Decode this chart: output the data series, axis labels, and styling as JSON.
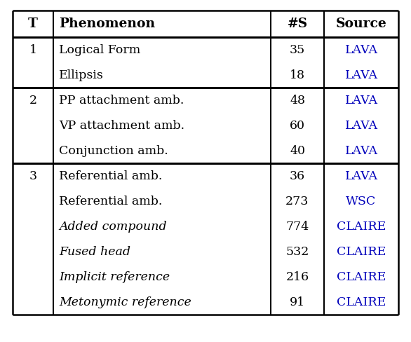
{
  "headers": [
    "T",
    "Phenomenon",
    "#S",
    "Source"
  ],
  "rows": [
    {
      "t": "1",
      "phenomenon": "Logical Form",
      "ns": "35",
      "source": "LAVA",
      "italic": false
    },
    {
      "t": "",
      "phenomenon": "Ellipsis",
      "ns": "18",
      "source": "LAVA",
      "italic": false
    },
    {
      "t": "2",
      "phenomenon": "PP attachment amb.",
      "ns": "48",
      "source": "LAVA",
      "italic": false
    },
    {
      "t": "",
      "phenomenon": "VP attachment amb.",
      "ns": "60",
      "source": "LAVA",
      "italic": false
    },
    {
      "t": "",
      "phenomenon": "Conjunction amb.",
      "ns": "40",
      "source": "LAVA",
      "italic": false
    },
    {
      "t": "3",
      "phenomenon": "Referential amb.",
      "ns": "36",
      "source": "LAVA",
      "italic": false
    },
    {
      "t": "",
      "phenomenon": "Referential amb.",
      "ns": "273",
      "source": "WSC",
      "italic": false
    },
    {
      "t": "",
      "phenomenon": "Added compound",
      "ns": "774",
      "source": "CLAIRE",
      "italic": true
    },
    {
      "t": "",
      "phenomenon": "Fused head",
      "ns": "532",
      "source": "CLAIRE",
      "italic": true
    },
    {
      "t": "",
      "phenomenon": "Implicit reference",
      "ns": "216",
      "source": "CLAIRE",
      "italic": true
    },
    {
      "t": "",
      "phenomenon": "Metonymic reference",
      "ns": "91",
      "source": "CLAIRE",
      "italic": true
    }
  ],
  "sep_after_rows": [
    1,
    4
  ],
  "source_color": "#0000BB",
  "text_color": "#000000",
  "bg_color": "#ffffff",
  "header_fontsize": 13.5,
  "body_fontsize": 12.5,
  "figwidth": 5.86,
  "figheight": 4.88,
  "dpi": 100
}
